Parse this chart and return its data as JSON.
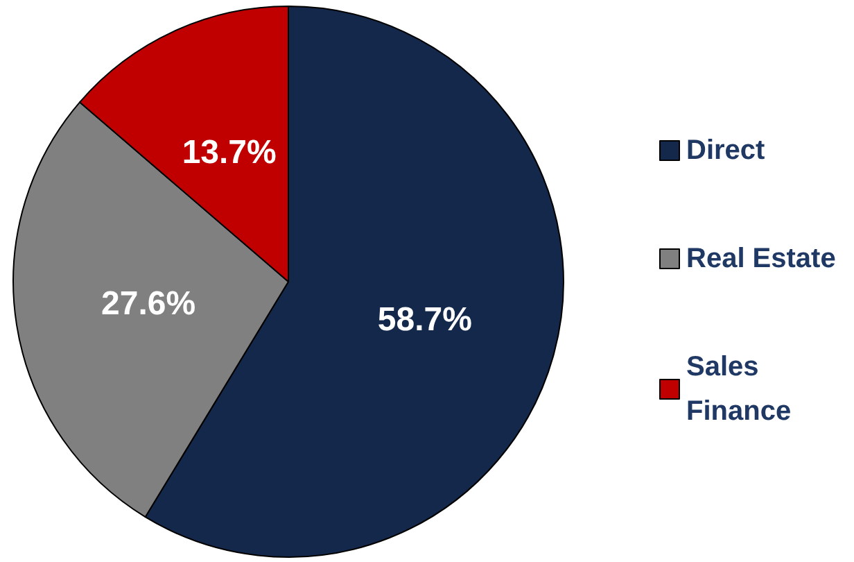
{
  "chart_data": {
    "type": "pie",
    "categories": [
      "Direct",
      "Real Estate",
      "Sales Finance"
    ],
    "values": [
      58.7,
      27.6,
      13.7
    ],
    "colors": [
      "#13284a",
      "#808080",
      "#c00000"
    ],
    "value_labels": [
      "58.7%",
      "27.6%",
      "13.7%"
    ],
    "legend": "right"
  }
}
